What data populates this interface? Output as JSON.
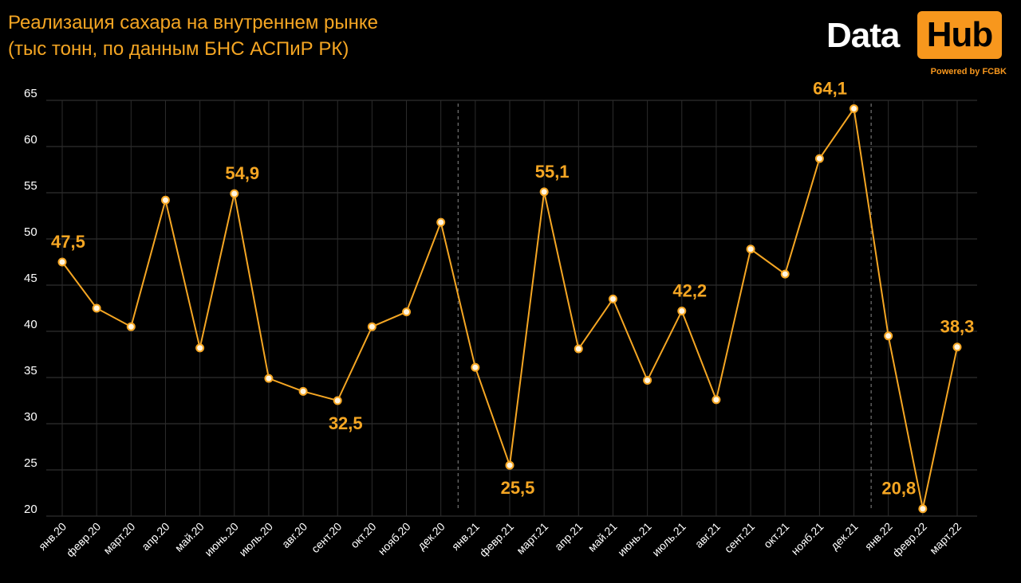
{
  "header": {
    "title_line1": "Реализация сахара на внутреннем рынке",
    "title_line2": "(тыс тонн, по данным БНС АСПиР РК)"
  },
  "logo": {
    "word1": "Data",
    "word2": "Hub",
    "tagline": "Powered by FCBK",
    "accent_color": "#f7971d"
  },
  "chart_data": {
    "type": "line",
    "categories": [
      "янв.20",
      "февр.20",
      "март.20",
      "апр.20",
      "май.20",
      "июнь.20",
      "июль.20",
      "авг.20",
      "сент.20",
      "окт.20",
      "нояб.20",
      "дек.20",
      "янв.21",
      "февр.21",
      "март.21",
      "апр.21",
      "май.21",
      "июнь.21",
      "июль.21",
      "авг.21",
      "сент.21",
      "окт.21",
      "нояб.21",
      "дек.21",
      "янв.22",
      "февр.22",
      "март.22"
    ],
    "values": [
      47.5,
      42.5,
      40.5,
      54.2,
      38.2,
      54.9,
      34.9,
      33.5,
      32.5,
      40.5,
      42.1,
      51.8,
      36.1,
      25.5,
      55.1,
      38.1,
      43.5,
      34.7,
      42.2,
      32.6,
      48.9,
      46.2,
      58.7,
      64.1,
      39.5,
      20.8,
      38.3
    ],
    "data_labels": [
      {
        "index": 0,
        "text": "47,5"
      },
      {
        "index": 5,
        "text": "54,9"
      },
      {
        "index": 8,
        "text": "32,5"
      },
      {
        "index": 13,
        "text": "25,5"
      },
      {
        "index": 14,
        "text": "55,1"
      },
      {
        "index": 18,
        "text": "42,2"
      },
      {
        "index": 23,
        "text": "64,1"
      },
      {
        "index": 25,
        "text": "20,8"
      },
      {
        "index": 26,
        "text": "38,3"
      }
    ],
    "yticks": [
      "20",
      "25",
      "30",
      "35",
      "40",
      "45",
      "50",
      "55",
      "60",
      "65"
    ],
    "ylim": [
      20,
      65
    ],
    "year_separators_after_index": [
      11,
      23
    ],
    "grid": true,
    "line_color": "#f5a623",
    "marker_fill": "#fff5e0"
  }
}
